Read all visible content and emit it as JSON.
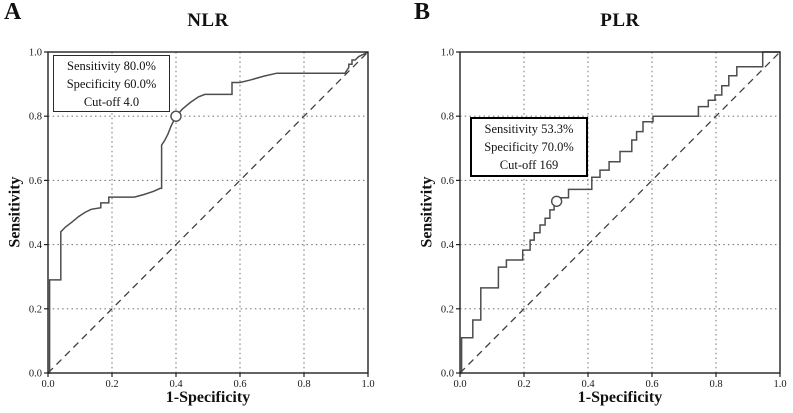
{
  "figure": {
    "description": "Two-panel ROC curve figure",
    "panel_a_letter": "A",
    "panel_b_letter": "B"
  },
  "chart_data": [
    {
      "panel_label": "A",
      "type": "line",
      "title": "NLR",
      "xlabel": "1-Specificity",
      "ylabel": "Sensitivity",
      "xlim": [
        0,
        1
      ],
      "ylim": [
        0,
        1
      ],
      "x_ticks": [
        "0.0",
        "0.2",
        "0.4",
        "0.6",
        "0.8",
        "1.0"
      ],
      "y_ticks": [
        "0.0",
        "0.2",
        "0.4",
        "0.6",
        "0.8",
        "1.0"
      ],
      "grid": "dotted at 0.2 intervals",
      "legend": "none",
      "annotation": {
        "lines": [
          "Sensitivity 80.0%",
          "Specificity 60.0%",
          "Cut-off 4.0"
        ],
        "sensitivity_pct": 80.0,
        "specificity_pct": 60.0,
        "cutoff": 4.0
      },
      "cutoff_marker": {
        "x": 0.4,
        "y": 0.8
      },
      "series": [
        {
          "name": "ROC curve",
          "style": "solid",
          "points": [
            [
              0,
              0
            ],
            [
              0.005,
              0
            ],
            [
              0.005,
              0.29
            ],
            [
              0.04,
              0.29
            ],
            [
              0.04,
              0.44
            ],
            [
              0.055,
              0.455
            ],
            [
              0.075,
              0.47
            ],
            [
              0.095,
              0.487
            ],
            [
              0.115,
              0.5
            ],
            [
              0.135,
              0.51
            ],
            [
              0.165,
              0.515
            ],
            [
              0.165,
              0.53
            ],
            [
              0.19,
              0.53
            ],
            [
              0.19,
              0.548
            ],
            [
              0.27,
              0.548
            ],
            [
              0.3,
              0.556
            ],
            [
              0.33,
              0.566
            ],
            [
              0.35,
              0.575
            ],
            [
              0.355,
              0.575
            ],
            [
              0.355,
              0.71
            ],
            [
              0.365,
              0.725
            ],
            [
              0.375,
              0.745
            ],
            [
              0.385,
              0.77
            ],
            [
              0.4,
              0.8
            ],
            [
              0.42,
              0.822
            ],
            [
              0.445,
              0.843
            ],
            [
              0.47,
              0.86
            ],
            [
              0.49,
              0.868
            ],
            [
              0.575,
              0.868
            ],
            [
              0.575,
              0.905
            ],
            [
              0.6,
              0.905
            ],
            [
              0.63,
              0.912
            ],
            [
              0.675,
              0.925
            ],
            [
              0.715,
              0.934
            ],
            [
              0.928,
              0.934
            ],
            [
              0.94,
              0.952
            ],
            [
              0.94,
              0.962
            ],
            [
              0.95,
              0.962
            ],
            [
              0.95,
              0.975
            ],
            [
              0.96,
              0.975
            ],
            [
              0.97,
              0.985
            ],
            [
              1,
              1
            ]
          ]
        },
        {
          "name": "Reference diagonal",
          "style": "dashed",
          "points": [
            [
              0,
              0
            ],
            [
              1,
              1
            ]
          ]
        }
      ]
    },
    {
      "panel_label": "B",
      "type": "line",
      "title": "PLR",
      "xlabel": "1-Specificity",
      "ylabel": "Sensitivity",
      "xlim": [
        0,
        1
      ],
      "ylim": [
        0,
        1
      ],
      "x_ticks": [
        "0.0",
        "0.2",
        "0.4",
        "0.6",
        "0.8",
        "1.0"
      ],
      "y_ticks": [
        "0.0",
        "0.2",
        "0.4",
        "0.6",
        "0.8",
        "1.0"
      ],
      "grid": "dotted at 0.2 intervals",
      "legend": "none",
      "annotation": {
        "lines": [
          "Sensitivity 53.3%",
          "Specificity 70.0%",
          "Cut-off 169"
        ],
        "sensitivity_pct": 53.3,
        "specificity_pct": 70.0,
        "cutoff": 169
      },
      "cutoff_marker": {
        "x": 0.302,
        "y": 0.535
      },
      "series": [
        {
          "name": "ROC curve",
          "style": "solid",
          "points": [
            [
              0,
              0
            ],
            [
              0.005,
              0
            ],
            [
              0.005,
              0.11
            ],
            [
              0.04,
              0.11
            ],
            [
              0.04,
              0.165
            ],
            [
              0.065,
              0.165
            ],
            [
              0.065,
              0.265
            ],
            [
              0.12,
              0.265
            ],
            [
              0.12,
              0.33
            ],
            [
              0.145,
              0.33
            ],
            [
              0.145,
              0.352
            ],
            [
              0.196,
              0.352
            ],
            [
              0.196,
              0.383
            ],
            [
              0.219,
              0.383
            ],
            [
              0.219,
              0.414
            ],
            [
              0.232,
              0.414
            ],
            [
              0.232,
              0.437
            ],
            [
              0.25,
              0.437
            ],
            [
              0.25,
              0.461
            ],
            [
              0.266,
              0.461
            ],
            [
              0.266,
              0.482
            ],
            [
              0.281,
              0.482
            ],
            [
              0.281,
              0.508
            ],
            [
              0.294,
              0.508
            ],
            [
              0.294,
              0.525
            ],
            [
              0.302,
              0.525
            ],
            [
              0.302,
              0.546
            ],
            [
              0.339,
              0.546
            ],
            [
              0.339,
              0.572
            ],
            [
              0.412,
              0.572
            ],
            [
              0.412,
              0.61
            ],
            [
              0.4375,
              0.61
            ],
            [
              0.4375,
              0.632
            ],
            [
              0.466,
              0.632
            ],
            [
              0.466,
              0.658
            ],
            [
              0.5,
              0.658
            ],
            [
              0.5,
              0.69
            ],
            [
              0.537,
              0.69
            ],
            [
              0.537,
              0.726
            ],
            [
              0.552,
              0.726
            ],
            [
              0.552,
              0.752
            ],
            [
              0.572,
              0.752
            ],
            [
              0.572,
              0.783
            ],
            [
              0.603,
              0.783
            ],
            [
              0.603,
              0.8
            ],
            [
              0.745,
              0.8
            ],
            [
              0.745,
              0.83
            ],
            [
              0.776,
              0.83
            ],
            [
              0.776,
              0.85
            ],
            [
              0.797,
              0.85
            ],
            [
              0.797,
              0.866
            ],
            [
              0.818,
              0.866
            ],
            [
              0.818,
              0.895
            ],
            [
              0.84,
              0.895
            ],
            [
              0.84,
              0.926
            ],
            [
              0.865,
              0.926
            ],
            [
              0.865,
              0.954
            ],
            [
              0.946,
              0.954
            ],
            [
              0.946,
              1
            ],
            [
              1,
              1
            ]
          ]
        },
        {
          "name": "Reference diagonal",
          "style": "dashed",
          "points": [
            [
              0,
              0
            ],
            [
              1,
              1
            ]
          ]
        }
      ]
    }
  ],
  "style": {
    "curve_color": "#4d4d4d",
    "diagonal_color": "#3f3f3f",
    "grid_color": "#7d7d7d",
    "frame_color": "#222222",
    "marker_fill": "#ffffff",
    "background": "#ffffff"
  }
}
